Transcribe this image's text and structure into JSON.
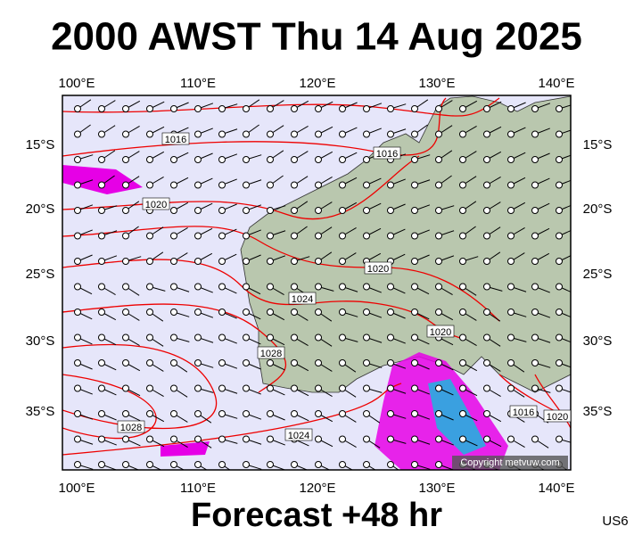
{
  "header": {
    "title": "2000 AWST Thu 14 Aug 2025"
  },
  "map": {
    "lon_labels": [
      "100°E",
      "110°E",
      "120°E",
      "130°E",
      "140°E"
    ],
    "lat_labels": [
      "15°S",
      "20°S",
      "25°S",
      "30°S",
      "35°S"
    ],
    "isobar_labels": [
      "1016",
      "1020",
      "1016",
      "1020",
      "1024",
      "1020",
      "1028",
      "1028",
      "1024",
      "1016",
      "1020"
    ],
    "copyright": "Copyright metvuw.com"
  },
  "footer": {
    "forecast": "Forecast +48 hr",
    "code": "US6"
  }
}
